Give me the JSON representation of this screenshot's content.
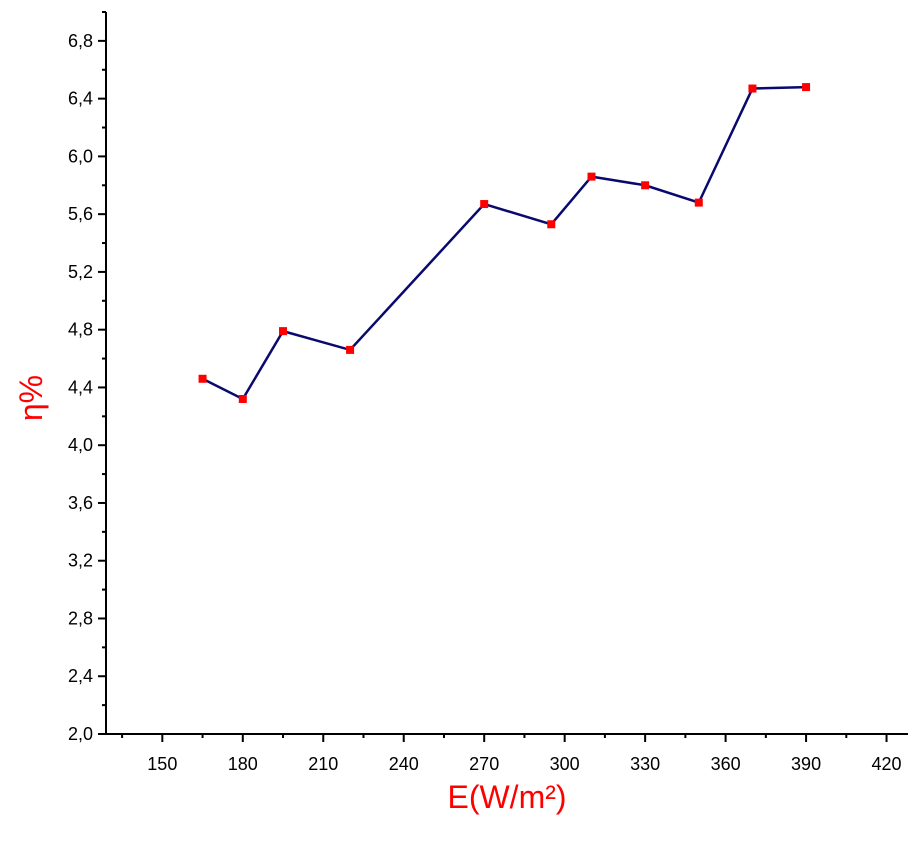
{
  "chart_data": {
    "type": "line",
    "xlabel": "E(W/m²)",
    "ylabel": "η%",
    "x": [
      165,
      180,
      195,
      220,
      270,
      295,
      310,
      330,
      350,
      370,
      390
    ],
    "series": [
      {
        "color": "#0a0a6e",
        "marker_color": "#ff0000",
        "values": [
          4.46,
          4.32,
          4.79,
          4.66,
          5.67,
          5.53,
          5.86,
          5.8,
          5.68,
          6.47,
          6.48
        ]
      }
    ],
    "xlim": [
      129,
      428
    ],
    "ylim": [
      2.0,
      7.0
    ],
    "xticks": [
      150,
      180,
      210,
      240,
      270,
      300,
      330,
      360,
      390,
      420
    ],
    "yticks": [
      {
        "value": 2.0,
        "label": "2,0"
      },
      {
        "value": 2.4,
        "label": "2,4"
      },
      {
        "value": 2.8,
        "label": "2,8"
      },
      {
        "value": 3.2,
        "label": "3,2"
      },
      {
        "value": 3.6,
        "label": "3,6"
      },
      {
        "value": 4.0,
        "label": "4,0"
      },
      {
        "value": 4.4,
        "label": "4,4"
      },
      {
        "value": 4.8,
        "label": "4,8"
      },
      {
        "value": 5.2,
        "label": "5,2"
      },
      {
        "value": 5.6,
        "label": "5,6"
      },
      {
        "value": 6.0,
        "label": "6,0"
      },
      {
        "value": 6.4,
        "label": "6,4"
      },
      {
        "value": 6.8,
        "label": "6,8"
      }
    ],
    "axis_title_color": "#ff0000"
  }
}
